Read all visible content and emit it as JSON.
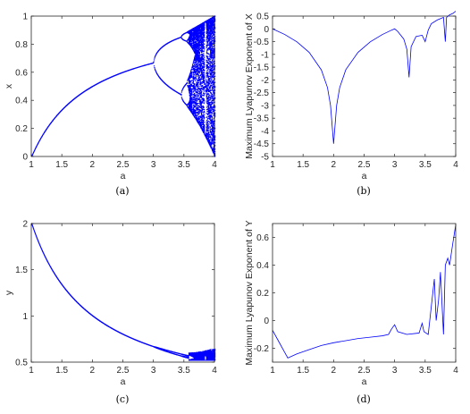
{
  "chart_data": [
    {
      "id": "a",
      "type": "scatter",
      "caption": "(a)",
      "xlabel": "a",
      "ylabel": "x",
      "xlim": [
        1,
        4
      ],
      "ylim": [
        0,
        1
      ],
      "xticks": [
        "1",
        "1.5",
        "2",
        "2.5",
        "3",
        "3.5",
        "4"
      ],
      "yticks": [
        "0",
        "0.2",
        "0.4",
        "0.6",
        "0.8",
        "1"
      ],
      "color": "#0000ff",
      "description_points": {
        "stable_branch": [
          [
            1.0,
            0.0
          ],
          [
            1.5,
            0.33
          ],
          [
            2.0,
            0.5
          ],
          [
            2.5,
            0.6
          ],
          [
            3.0,
            0.667
          ]
        ],
        "period2_upper": [
          [
            3.05,
            0.74
          ],
          [
            3.25,
            0.8
          ],
          [
            3.45,
            0.85
          ]
        ],
        "period2_lower": [
          [
            3.05,
            0.63
          ],
          [
            3.25,
            0.5
          ],
          [
            3.45,
            0.44
          ]
        ],
        "chaotic_range": [
          3.57,
          4.0
        ]
      }
    },
    {
      "id": "b",
      "type": "line",
      "caption": "(b)",
      "xlabel": "a",
      "ylabel": "Maximum Lyapunov Exponent of X",
      "xlim": [
        1,
        4
      ],
      "ylim": [
        -5,
        0.5
      ],
      "xticks": [
        "1",
        "1.5",
        "2",
        "2.5",
        "3",
        "3.5",
        "4"
      ],
      "yticks": [
        "-5",
        "-4.5",
        "-4",
        "-3.5",
        "-3",
        "-2.5",
        "-2",
        "-1.5",
        "-1",
        "-0.5",
        "0",
        "0.5"
      ],
      "color": "#0000ff",
      "x": [
        1.0,
        1.2,
        1.4,
        1.6,
        1.8,
        1.9,
        1.95,
        2.0,
        2.05,
        2.1,
        2.2,
        2.4,
        2.6,
        2.8,
        2.95,
        3.0,
        3.05,
        3.15,
        3.2,
        3.236,
        3.27,
        3.35,
        3.45,
        3.5,
        3.55,
        3.6,
        3.7,
        3.75,
        3.8,
        3.83,
        3.85,
        3.9,
        3.95,
        4.0
      ],
      "y": [
        0.0,
        -0.22,
        -0.51,
        -0.92,
        -1.61,
        -2.3,
        -3.0,
        -4.5,
        -3.0,
        -2.3,
        -1.6,
        -0.92,
        -0.51,
        -0.22,
        -0.05,
        0.0,
        -0.1,
        -0.4,
        -0.8,
        -1.9,
        -0.7,
        -0.3,
        -0.25,
        -0.5,
        -0.05,
        0.2,
        0.35,
        0.4,
        0.45,
        -0.5,
        0.45,
        0.55,
        0.6,
        0.69
      ]
    },
    {
      "id": "c",
      "type": "scatter",
      "caption": "(c)",
      "xlabel": "a",
      "ylabel": "y",
      "xlim": [
        1,
        4
      ],
      "ylim": [
        0.5,
        2
      ],
      "xticks": [
        "1",
        "1.5",
        "2",
        "2.5",
        "3",
        "3.5",
        "4"
      ],
      "yticks": [
        "0.5",
        "1",
        "1.5",
        "2"
      ],
      "color": "#0000ff",
      "x": [
        1.0,
        1.25,
        1.5,
        1.75,
        2.0,
        2.25,
        2.5,
        2.75,
        3.0
      ],
      "y": [
        2.0,
        1.6,
        1.333,
        1.143,
        1.0,
        0.889,
        0.8,
        0.727,
        0.667
      ]
    },
    {
      "id": "d",
      "type": "line",
      "caption": "(d)",
      "xlabel": "a",
      "ylabel": "Maximum Lyapunov Exponent of Y",
      "xlim": [
        1,
        4
      ],
      "ylim": [
        -0.3,
        0.7
      ],
      "xticks": [
        "1",
        "1.5",
        "2",
        "2.5",
        "3",
        "3.5",
        "4"
      ],
      "yticks": [
        "-0.2",
        "0",
        "0.2",
        "0.4",
        "0.6"
      ],
      "color": "#0000ff",
      "x": [
        1.0,
        1.1,
        1.2,
        1.25,
        1.4,
        1.6,
        1.8,
        2.0,
        2.2,
        2.4,
        2.6,
        2.8,
        2.9,
        2.95,
        3.0,
        3.05,
        3.2,
        3.4,
        3.45,
        3.48,
        3.55,
        3.6,
        3.65,
        3.68,
        3.72,
        3.75,
        3.8,
        3.83,
        3.87,
        3.9,
        3.95,
        4.0
      ],
      "y": [
        -0.07,
        -0.15,
        -0.23,
        -0.27,
        -0.24,
        -0.21,
        -0.18,
        -0.16,
        -0.145,
        -0.13,
        -0.12,
        -0.11,
        -0.1,
        -0.06,
        -0.03,
        -0.08,
        -0.1,
        -0.09,
        -0.02,
        -0.08,
        -0.1,
        0.1,
        0.3,
        0.0,
        0.15,
        0.35,
        -0.1,
        0.4,
        0.45,
        0.4,
        0.55,
        0.69
      ]
    }
  ]
}
